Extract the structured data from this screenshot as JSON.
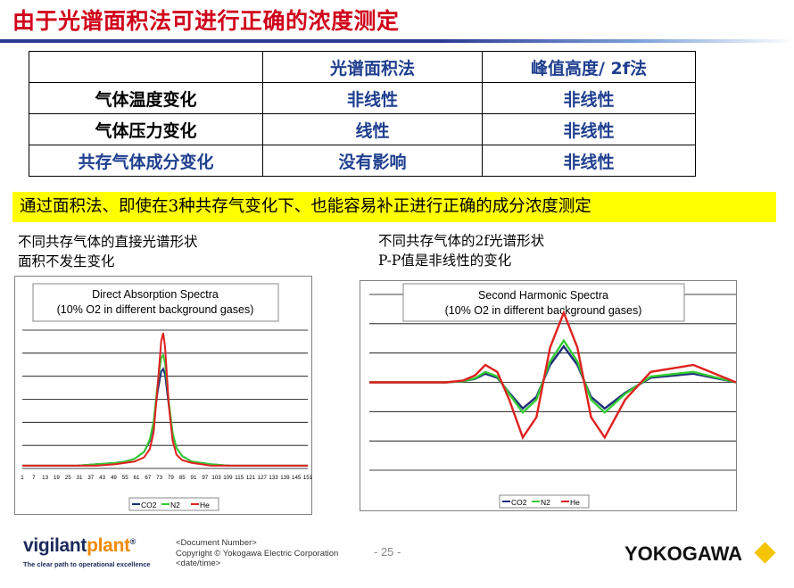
{
  "title": "由于光谱面积法可进行正确的浓度测定",
  "table": {
    "headers": [
      "",
      "光谱面积法",
      "峰值高度/ 2f法"
    ],
    "rows": [
      [
        "气体温度变化",
        "非线性",
        "非线性"
      ],
      [
        "气体压力变化",
        "线性",
        "非线性"
      ],
      [
        "共存气体成分变化",
        "没有影响",
        "非线性"
      ]
    ]
  },
  "banner": "通过面积法、即使在3种共存气变化下、也能容易补正进行正确的成分浓度测定",
  "left_caption": {
    "line1": "不同共存气体的直接光谱形状",
    "line2": "面积不发生变化"
  },
  "right_caption": {
    "line1": "不同共存气体的2f光谱形状",
    "line2": "P-P值是非线性的变化"
  },
  "chart_data": [
    {
      "type": "line",
      "title": "Direct Absorption Spectra",
      "subtitle": "(10% O2 in different background gases)",
      "x_tick_labels": [
        "1",
        "7",
        "13",
        "19",
        "25",
        "31",
        "37",
        "43",
        "49",
        "55",
        "61",
        "67",
        "73",
        "79",
        "85",
        "91",
        "97",
        "103",
        "109",
        "115",
        "121",
        "127",
        "133",
        "139",
        "145",
        "151"
      ],
      "x": [
        1,
        10,
        20,
        30,
        40,
        50,
        55,
        60,
        65,
        68,
        70,
        72,
        74,
        75,
        76,
        78,
        80,
        82,
        85,
        90,
        95,
        100,
        110,
        120,
        130,
        140,
        151
      ],
      "series": [
        {
          "name": "CO2",
          "color": "#1f2d7a",
          "values": [
            0.02,
            0.02,
            0.02,
            0.02,
            0.03,
            0.04,
            0.05,
            0.07,
            0.12,
            0.2,
            0.32,
            0.55,
            0.7,
            0.72,
            0.68,
            0.45,
            0.25,
            0.15,
            0.09,
            0.05,
            0.04,
            0.03,
            0.02,
            0.02,
            0.02,
            0.02,
            0.02
          ]
        },
        {
          "name": "N2",
          "color": "#33cc33",
          "values": [
            0.02,
            0.02,
            0.02,
            0.02,
            0.03,
            0.04,
            0.05,
            0.07,
            0.12,
            0.21,
            0.34,
            0.6,
            0.8,
            0.82,
            0.76,
            0.48,
            0.26,
            0.15,
            0.09,
            0.05,
            0.04,
            0.03,
            0.02,
            0.02,
            0.02,
            0.02,
            0.02
          ]
        },
        {
          "name": "He",
          "color": "#e02020",
          "values": [
            0.02,
            0.02,
            0.02,
            0.02,
            0.02,
            0.03,
            0.04,
            0.05,
            0.08,
            0.14,
            0.26,
            0.58,
            0.92,
            0.98,
            0.88,
            0.45,
            0.2,
            0.1,
            0.06,
            0.04,
            0.03,
            0.02,
            0.02,
            0.02,
            0.02,
            0.02,
            0.02
          ]
        }
      ],
      "legend": "bottom"
    },
    {
      "type": "line",
      "title": "Second Harmonic Spectra",
      "subtitle": "(10% O2 in different background gases)",
      "x": [
        0,
        25,
        45,
        55,
        62,
        68,
        75,
        82,
        90,
        98,
        106,
        114,
        122,
        130,
        138,
        150,
        165,
        190,
        215
      ],
      "series": [
        {
          "name": "CO2",
          "color": "#1f2d7a",
          "values": [
            0,
            0,
            0,
            0.02,
            0.06,
            0.15,
            0.08,
            -0.18,
            -0.45,
            -0.25,
            0.3,
            0.62,
            0.3,
            -0.25,
            -0.45,
            -0.18,
            0.08,
            0.15,
            0
          ]
        },
        {
          "name": "N2",
          "color": "#33cc33",
          "values": [
            0,
            0,
            0,
            0.02,
            0.07,
            0.18,
            0.1,
            -0.2,
            -0.52,
            -0.3,
            0.36,
            0.72,
            0.36,
            -0.3,
            -0.52,
            -0.2,
            0.1,
            0.18,
            0
          ]
        },
        {
          "name": "He",
          "color": "#e02020",
          "values": [
            0,
            0,
            0,
            0.03,
            0.12,
            0.3,
            0.18,
            -0.3,
            -0.95,
            -0.6,
            0.6,
            1.2,
            0.6,
            -0.6,
            -0.95,
            -0.3,
            0.18,
            0.3,
            0
          ]
        }
      ],
      "legend": "bottom"
    }
  ],
  "footer": {
    "brand_a": "vigilant",
    "brand_b": "plant",
    "brand_mark": "®",
    "tagline": "The clear path to operational excellence",
    "doc_number": "<Document  Number>",
    "copyright": "Copyright © Yokogawa Electric Corporation",
    "date": "<date/time>",
    "page": "- 25 -",
    "company": "YOKOGAWA"
  },
  "colors": {
    "title": "#d0021b",
    "table_text": "#1f3f8f",
    "banner_bg": "#ffff00",
    "accent_diamond": "#f5c400"
  }
}
